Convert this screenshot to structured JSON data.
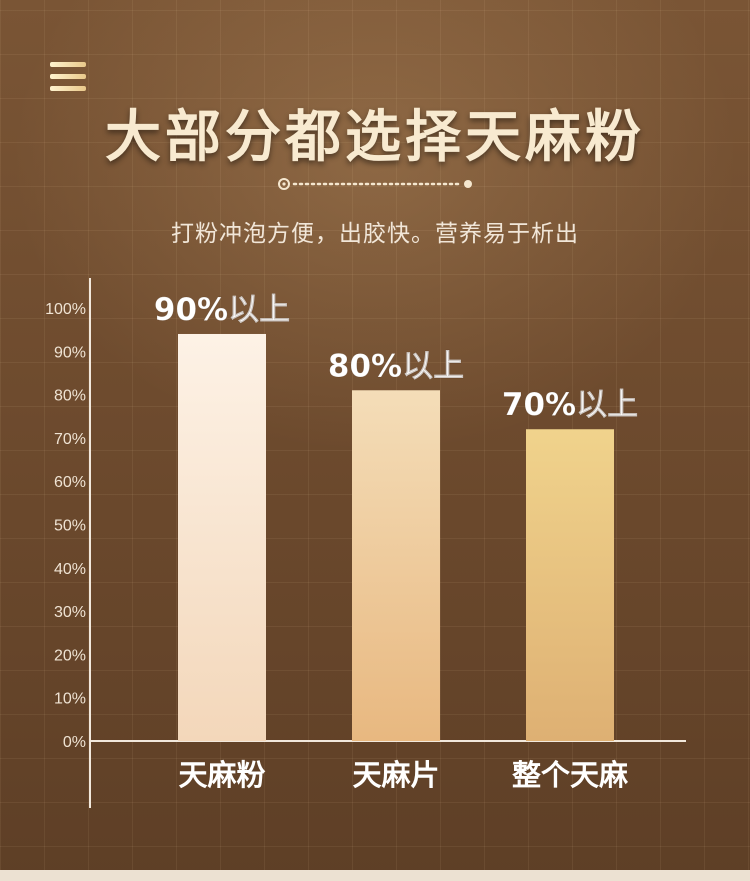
{
  "title": "大部分都选择天麻粉",
  "subtitle": "打粉冲泡方便，出胶快。营养易于析出",
  "icons": {
    "menu": "menu-icon",
    "divider": "dotted-divider"
  },
  "colors": {
    "background": "#6e4b2e",
    "title": "#f8ead0",
    "axis": "#f2e8dc",
    "bar_label": "#ffffff"
  },
  "chart_data": {
    "type": "bar",
    "categories": [
      "天麻粉",
      "天麻片",
      "整个天麻"
    ],
    "values": [
      94,
      81,
      72
    ],
    "data_labels": [
      "90%以上",
      "80%以上",
      "70%以上"
    ],
    "yticks": [
      "0%",
      "10%",
      "20%",
      "30%",
      "40%",
      "50%",
      "60%",
      "70%",
      "80%",
      "90%",
      "100%"
    ],
    "ylim": [
      0,
      100
    ],
    "grid": true,
    "bar_gradients": [
      [
        "#fdf2e6",
        "#f3d7ba"
      ],
      [
        "#f4ddb8",
        "#e8b880"
      ],
      [
        "#f0d38c",
        "#deb073"
      ]
    ]
  }
}
